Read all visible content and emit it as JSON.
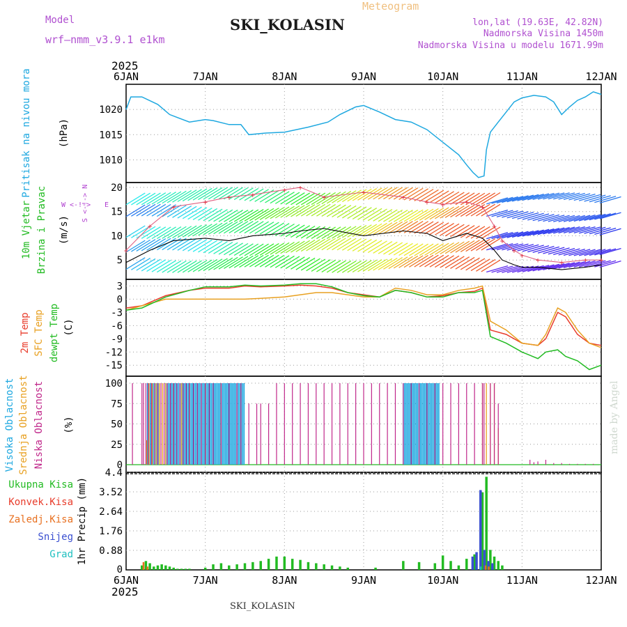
{
  "header": {
    "model_label": "Model",
    "model_value": "wrf—nmm_v3.9.1  e1km",
    "station": "SKI_KOLASIN",
    "meteogram": "Meteogram",
    "lonlat": "lon,lat (19.63E, 42.82N)",
    "altitude": "Nadmorska Visina 1450m",
    "model_altitude": "Nadmorska Visina u modelu 1671.99m",
    "year": "2025",
    "footer_station": "SKI_KOLASIN",
    "watermark": "made by Angel"
  },
  "colors": {
    "pressure": "#1ea8e0",
    "temp2m": "#e83b2a",
    "sfc": "#e8a020",
    "dew": "#22bb22",
    "high_cloud": "#1ea8e0",
    "mid_cloud": "#e8a020",
    "low_cloud": "#c0278a",
    "total_precip": "#22bb22",
    "conv_precip": "#e83b2a",
    "frozen_precip": "#e87020",
    "snow": "#3a4fd0",
    "graupel": "#20c0c0"
  },
  "chart_data": [
    {
      "type": "line",
      "panel": "pressure",
      "labels": [
        "Pritisak na nivou mora",
        "(hPa)"
      ],
      "x_days": [
        "6JAN",
        "7JAN",
        "8JAN",
        "9JAN",
        "10JAN",
        "11JAN",
        "12JAN"
      ],
      "yticks": [
        1010,
        1015,
        1020
      ],
      "ylim": [
        1005.5,
        1025
      ],
      "x": [
        0,
        0.06,
        0.2,
        0.4,
        0.55,
        0.8,
        1.0,
        1.1,
        1.3,
        1.45,
        1.55,
        1.75,
        2.0,
        2.3,
        2.55,
        2.7,
        2.9,
        3.0,
        3.2,
        3.4,
        3.6,
        3.8,
        4.0,
        4.2,
        4.3,
        4.38,
        4.45,
        4.52,
        4.55,
        4.6,
        4.7,
        4.8,
        4.9,
        5.0,
        5.15,
        5.3,
        5.4,
        5.5,
        5.6,
        5.7,
        5.8,
        5.9,
        6.0
      ],
      "y": [
        1020.0,
        1022.5,
        1022.5,
        1021.0,
        1019.0,
        1017.5,
        1018.0,
        1017.8,
        1017.0,
        1017.0,
        1015.0,
        1015.3,
        1015.5,
        1016.5,
        1017.5,
        1019.0,
        1020.5,
        1020.8,
        1019.5,
        1018.0,
        1017.5,
        1016.0,
        1013.5,
        1011.0,
        1009.0,
        1007.5,
        1006.5,
        1006.8,
        1012.0,
        1015.5,
        1017.5,
        1019.5,
        1021.5,
        1022.3,
        1022.8,
        1022.5,
        1021.5,
        1019.0,
        1020.5,
        1021.8,
        1022.5,
        1023.5,
        1023.0
      ]
    },
    {
      "type": "line",
      "panel": "wind",
      "labels": [
        "10m Vjetar",
        "Brzina i Pravac",
        "(m/s)"
      ],
      "legend": {
        "N": "N",
        "W": "W",
        "E": "E",
        "S": "S",
        "arrow": "<-!->"
      },
      "yticks": [
        5,
        10,
        15,
        20
      ],
      "ylim": [
        1,
        21
      ],
      "series": [
        {
          "x": [
            0,
            0.3,
            0.6,
            1.0,
            1.3,
            1.6,
            2.0,
            2.2,
            2.5,
            3.0,
            3.5,
            3.8,
            4.0,
            4.3,
            4.5,
            4.65,
            4.75,
            4.9,
            5.0,
            5.2,
            5.5,
            5.8,
            6.0
          ],
          "y": [
            4.5,
            7,
            9,
            9.5,
            9,
            10,
            10.5,
            11,
            11.5,
            10,
            11,
            10.5,
            9,
            10.5,
            9.5,
            7,
            5,
            4,
            3.5,
            3.5,
            3,
            3.5,
            4
          ]
        },
        {
          "x": [
            0,
            0.3,
            0.6,
            1.0,
            1.3,
            1.6,
            2.0,
            2.2,
            2.5,
            3.0,
            3.5,
            3.8,
            4.0,
            4.3,
            4.5,
            4.65,
            4.75,
            4.9,
            5.0,
            5.2,
            5.5,
            5.8,
            6.0
          ],
          "y": [
            7,
            12,
            16,
            17,
            18,
            18.5,
            19.5,
            20,
            18,
            19,
            18,
            17,
            16.5,
            17,
            16,
            12,
            9,
            7,
            6,
            5,
            4.5,
            5,
            5
          ]
        }
      ]
    },
    {
      "type": "line",
      "panel": "temperature",
      "labels": [
        "2m Temp",
        "SFC Temp",
        "dewpt Temp",
        "(C)"
      ],
      "yticks": [
        3,
        0,
        -3,
        -6,
        -9,
        -12,
        -15
      ],
      "ylim": [
        -17.5,
        4.5
      ],
      "series": [
        {
          "name": "2m Temp",
          "x": [
            0,
            0.2,
            0.5,
            0.8,
            1.0,
            1.3,
            1.5,
            1.7,
            2.0,
            2.2,
            2.4,
            2.6,
            2.8,
            3.0,
            3.2,
            3.4,
            3.6,
            3.8,
            4.0,
            4.2,
            4.4,
            4.5,
            4.6,
            4.8,
            5.0,
            5.2,
            5.3,
            5.45,
            5.55,
            5.7,
            5.85,
            6.0
          ],
          "y": [
            -2,
            -1.5,
            0.8,
            2.0,
            2.5,
            2.5,
            3.0,
            2.8,
            3.0,
            3.2,
            3.0,
            2.5,
            1.5,
            1.0,
            0.5,
            2.0,
            1.5,
            0.5,
            0.8,
            1.5,
            1.8,
            2.5,
            -7,
            -8,
            -10,
            -10.5,
            -9,
            -3,
            -4,
            -8,
            -10,
            -10.5
          ]
        },
        {
          "name": "SFC Temp",
          "x": [
            0,
            0.2,
            0.5,
            0.8,
            1.0,
            1.3,
            1.5,
            1.7,
            2.0,
            2.2,
            2.4,
            2.6,
            2.8,
            3.0,
            3.2,
            3.4,
            3.6,
            3.8,
            4.0,
            4.2,
            4.4,
            4.5,
            4.6,
            4.8,
            5.0,
            5.2,
            5.3,
            5.45,
            5.55,
            5.7,
            5.85,
            6.0
          ],
          "y": [
            -2.5,
            -1.5,
            0.0,
            0.0,
            0.0,
            0.0,
            0.0,
            0.2,
            0.5,
            1.0,
            1.5,
            1.5,
            1.0,
            0.5,
            0.5,
            2.5,
            2.0,
            1.0,
            1.0,
            2.0,
            2.5,
            3.0,
            -5,
            -7,
            -10,
            -10.5,
            -8,
            -2,
            -3,
            -7,
            -10,
            -11
          ]
        },
        {
          "name": "dewpt Temp",
          "x": [
            0,
            0.2,
            0.5,
            0.8,
            1.0,
            1.3,
            1.5,
            1.7,
            2.0,
            2.2,
            2.4,
            2.6,
            2.8,
            3.0,
            3.2,
            3.4,
            3.6,
            3.8,
            4.0,
            4.2,
            4.4,
            4.5,
            4.6,
            4.8,
            5.0,
            5.2,
            5.3,
            5.45,
            5.55,
            5.7,
            5.85,
            6.0
          ],
          "y": [
            -2.5,
            -2.0,
            0.5,
            2.0,
            2.8,
            2.8,
            3.2,
            3.0,
            3.2,
            3.5,
            3.5,
            2.8,
            1.5,
            0.8,
            0.5,
            2.0,
            1.5,
            0.5,
            0.5,
            1.5,
            1.5,
            2.0,
            -8.5,
            -10,
            -12,
            -13.5,
            -12,
            -11.5,
            -13,
            -14,
            -16,
            -15
          ]
        }
      ]
    },
    {
      "type": "bar",
      "panel": "clouds",
      "labels": [
        "Visoka Oblacnost",
        "Srednja Oblacnost",
        "Niska Oblacnost",
        "(%)"
      ],
      "yticks": [
        100,
        75,
        50,
        25,
        0
      ],
      "ylim": [
        0,
        100
      ],
      "low_x": [
        0.08,
        0.2,
        0.22,
        0.25,
        0.28,
        0.32,
        0.36,
        0.4,
        0.44,
        0.48,
        0.52,
        0.56,
        0.6,
        0.64,
        0.68,
        0.72,
        0.76,
        0.8,
        0.85,
        0.9,
        0.95,
        1.0,
        1.05,
        1.1,
        1.2,
        1.3,
        1.4,
        1.45,
        1.55,
        1.65,
        1.7,
        1.8,
        1.9,
        2.0,
        2.1,
        2.2,
        2.3,
        2.4,
        2.5,
        2.6,
        2.7,
        2.8,
        2.9,
        3.0,
        3.1,
        3.2,
        3.3,
        3.4,
        3.5,
        3.6,
        3.7,
        3.8,
        3.9,
        4.0,
        4.1,
        4.2,
        4.3,
        4.4,
        4.5,
        4.52,
        4.6,
        4.65,
        4.7
      ],
      "low_y": [
        100,
        100,
        100,
        100,
        100,
        100,
        100,
        100,
        100,
        100,
        100,
        100,
        100,
        100,
        100,
        100,
        100,
        100,
        100,
        100,
        100,
        100,
        100,
        100,
        100,
        100,
        100,
        100,
        75,
        75,
        75,
        75,
        100,
        100,
        100,
        100,
        100,
        100,
        100,
        100,
        100,
        100,
        100,
        100,
        100,
        100,
        100,
        100,
        100,
        100,
        100,
        100,
        100,
        100,
        100,
        100,
        100,
        100,
        100,
        100,
        100,
        100,
        75
      ],
      "mid_x": [
        0.26,
        0.29,
        0.33,
        0.38,
        0.42,
        0.46,
        0.5,
        0.6,
        0.7,
        0.8,
        1.0,
        1.2,
        4.5,
        4.55,
        4.6,
        4.65,
        4.7
      ],
      "mid_y": [
        30,
        100,
        100,
        100,
        100,
        100,
        100,
        100,
        100,
        100,
        100,
        100,
        100,
        100,
        100,
        100,
        45
      ],
      "high_ranges": [
        [
          0.27,
          0.42
        ],
        [
          0.5,
          1.5
        ],
        [
          3.5,
          3.95
        ]
      ],
      "high_y": 100,
      "tail_x": [
        5.1,
        5.15,
        5.2,
        5.3,
        5.4,
        5.5,
        5.6,
        5.7,
        5.8,
        5.9
      ],
      "tail_y": [
        6,
        3,
        4,
        6,
        2,
        2,
        1,
        1,
        1,
        1
      ]
    },
    {
      "type": "bar",
      "panel": "precip",
      "labels": [
        "Ukupna Kisa",
        "Konvek.Kisa",
        "Zaledj.Kisa",
        "Snijeg",
        "Grad",
        "1hr Precip (mm)"
      ],
      "yticks": [
        0.88,
        1.76,
        2.64,
        3.52,
        4.4
      ],
      "ylim": [
        0,
        4.4
      ],
      "total_x": [
        0.2,
        0.25,
        0.3,
        0.35,
        0.4,
        0.45,
        0.5,
        0.55,
        0.6,
        0.65,
        0.7,
        0.75,
        0.8,
        1.0,
        1.1,
        1.2,
        1.3,
        1.4,
        1.5,
        1.6,
        1.7,
        1.8,
        1.9,
        2.0,
        2.1,
        2.2,
        2.3,
        2.4,
        2.5,
        2.6,
        2.7,
        2.8,
        3.15,
        3.5,
        3.7,
        3.9,
        4.0,
        4.1,
        4.2,
        4.3,
        4.4,
        4.5,
        4.55,
        4.6,
        4.65,
        4.7,
        4.75
      ],
      "total_y": [
        0.2,
        0.4,
        0.3,
        0.15,
        0.2,
        0.25,
        0.2,
        0.15,
        0.1,
        0.05,
        0.05,
        0.05,
        0.05,
        0.1,
        0.25,
        0.3,
        0.2,
        0.25,
        0.3,
        0.35,
        0.4,
        0.5,
        0.6,
        0.6,
        0.5,
        0.45,
        0.35,
        0.3,
        0.25,
        0.2,
        0.15,
        0.1,
        0.1,
        0.4,
        0.35,
        0.3,
        0.65,
        0.4,
        0.2,
        0.5,
        0.7,
        3.5,
        4.2,
        0.9,
        0.6,
        0.4,
        0.2
      ],
      "snow_x": [
        4.4,
        4.45,
        4.5,
        4.55,
        4.6,
        4.65
      ],
      "snow_y": [
        0.6,
        0.8,
        3.6,
        0.9,
        0.4,
        0.3
      ],
      "frozen_x": [
        0.2,
        0.25,
        4.52,
        4.56
      ],
      "frozen_y": [
        0.35,
        0.15,
        0.2,
        0.15
      ],
      "graupel_x": [
        4.45
      ],
      "graupel_y": [
        0.15
      ]
    }
  ]
}
